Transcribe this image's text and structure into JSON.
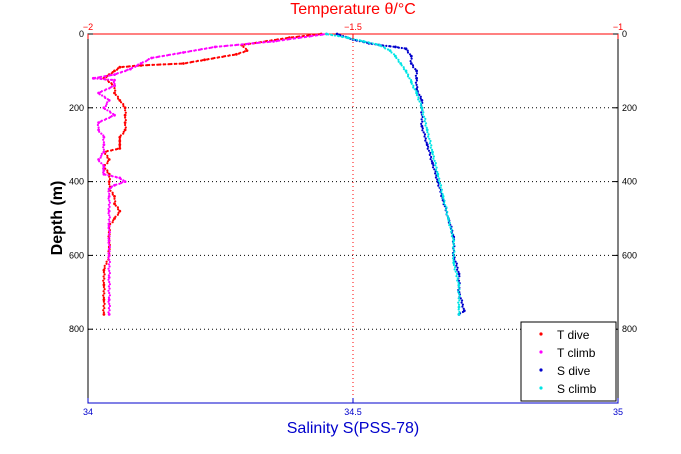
{
  "chart_data": {
    "type": "scatter",
    "top_axis": {
      "label": "Temperature θ/°C",
      "range": [
        -2,
        -1
      ],
      "ticks": [
        "-2",
        "-1.5",
        "-1"
      ],
      "color": "#ff0000"
    },
    "bottom_axis": {
      "label": "Salinity S(PSS-78)",
      "range": [
        34,
        35
      ],
      "ticks": [
        "34",
        "34.5",
        "35"
      ],
      "color": "#0000cc"
    },
    "y_axis": {
      "label": "Depth (m)",
      "range": [
        0,
        1000
      ],
      "reversed": true,
      "ticks": [
        "0",
        "200",
        "400",
        "600",
        "800"
      ]
    },
    "grid": true,
    "legend_position": "bottom-right",
    "series": [
      {
        "name": "T dive",
        "axis": "top",
        "color": "#ff0000",
        "x": [
          -1.56,
          -1.62,
          -1.71,
          -1.7,
          -1.72,
          -1.78,
          -1.82,
          -1.9,
          -1.94,
          -1.95,
          -1.96,
          -1.97,
          -1.95,
          -1.95,
          -1.94,
          -1.93,
          -1.93,
          -1.93,
          -1.93,
          -1.94,
          -1.94,
          -1.94,
          -1.94,
          -1.97,
          -1.96,
          -1.97,
          -1.96,
          -1.96,
          -1.96,
          -1.95,
          -1.95,
          -1.94,
          -1.95,
          -1.96,
          -1.96,
          -1.96,
          -1.97,
          -1.97,
          -1.97,
          -1.97
        ],
        "y": [
          0,
          10,
          30,
          45,
          55,
          70,
          80,
          85,
          90,
          100,
          110,
          120,
          140,
          160,
          180,
          200,
          220,
          240,
          260,
          280,
          290,
          300,
          310,
          320,
          340,
          360,
          380,
          400,
          420,
          440,
          460,
          480,
          500,
          520,
          560,
          600,
          640,
          680,
          720,
          760
        ]
      },
      {
        "name": "T climb",
        "axis": "top",
        "color": "#ff00ff",
        "x": [
          -1.55,
          -1.65,
          -1.76,
          -1.82,
          -1.88,
          -1.9,
          -1.92,
          -1.95,
          -1.99,
          -1.95,
          -1.95,
          -1.98,
          -1.96,
          -1.97,
          -1.95,
          -1.98,
          -1.98,
          -1.97,
          -1.97,
          -1.97,
          -1.98,
          -1.97,
          -1.97,
          -1.97,
          -1.94,
          -1.93,
          -1.95,
          -1.96,
          -1.96,
          -1.96,
          -1.96,
          -1.96,
          -1.96,
          -1.96,
          -1.96,
          -1.96
        ],
        "y": [
          0,
          20,
          35,
          50,
          65,
          80,
          95,
          110,
          120,
          125,
          140,
          160,
          180,
          200,
          220,
          240,
          260,
          280,
          300,
          320,
          340,
          360,
          370,
          380,
          390,
          400,
          410,
          420,
          440,
          480,
          520,
          560,
          600,
          660,
          720,
          760
        ]
      },
      {
        "name": "S dive",
        "axis": "bottom",
        "color": "#0000cc",
        "x": [
          34.47,
          34.5,
          34.53,
          34.55,
          34.58,
          34.6,
          34.61,
          34.61,
          34.62,
          34.62,
          34.62,
          34.63,
          34.63,
          34.63,
          34.64,
          34.65,
          34.66,
          34.67,
          34.68,
          34.69,
          34.69,
          34.7,
          34.7,
          34.71,
          34.7
        ],
        "y": [
          0,
          15,
          25,
          30,
          35,
          40,
          60,
          80,
          100,
          120,
          150,
          180,
          200,
          250,
          300,
          350,
          400,
          450,
          500,
          550,
          600,
          650,
          700,
          750,
          760
        ]
      },
      {
        "name": "S climb",
        "axis": "bottom",
        "color": "#00e5e5",
        "x": [
          34.45,
          34.49,
          34.52,
          34.55,
          34.57,
          34.58,
          34.59,
          34.6,
          34.61,
          34.62,
          34.63,
          34.64,
          34.65,
          34.66,
          34.67,
          34.68,
          34.69,
          34.69,
          34.7,
          34.7,
          34.7
        ],
        "y": [
          0,
          10,
          20,
          30,
          45,
          60,
          80,
          100,
          130,
          160,
          200,
          260,
          320,
          380,
          440,
          500,
          560,
          620,
          680,
          740,
          760
        ]
      }
    ]
  }
}
